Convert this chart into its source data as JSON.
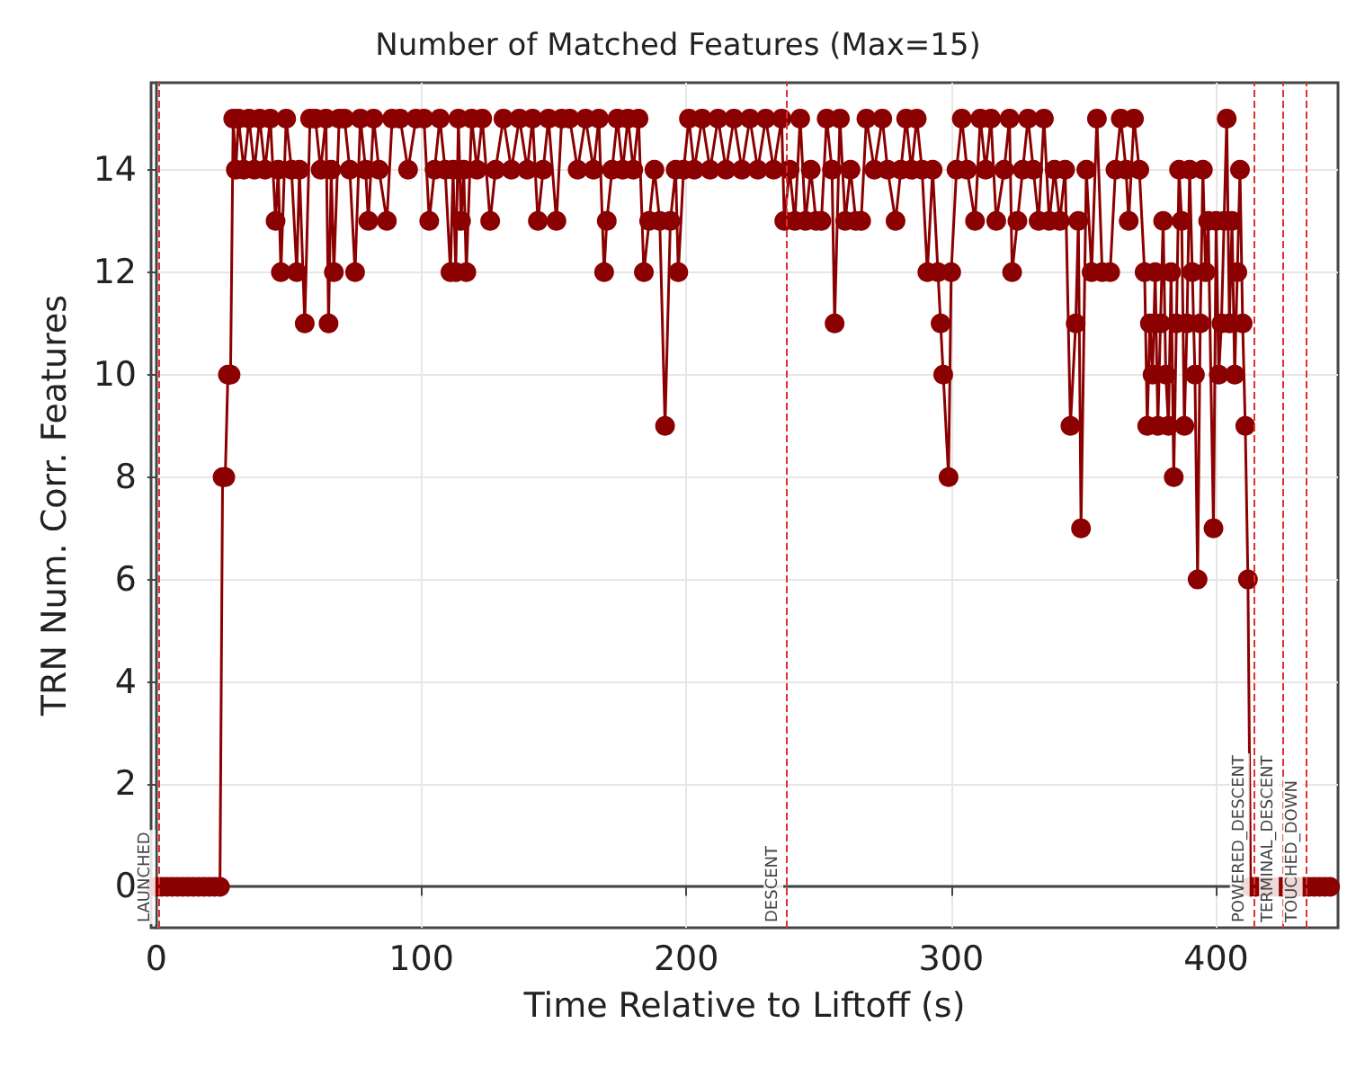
{
  "chart_data": {
    "type": "line",
    "title": "Number of Matched Features (Max=15)",
    "xlabel": "Time Relative to Liftoff (s)",
    "ylabel": "TRN Num. Corr. Features",
    "x": [
      0,
      2,
      4,
      6,
      8,
      10,
      12,
      14,
      16,
      18,
      20,
      22,
      24,
      25,
      26,
      27,
      28,
      29,
      30,
      31,
      33,
      35,
      37,
      39,
      41,
      43,
      45,
      46,
      47,
      49,
      51,
      53,
      54,
      56,
      58,
      60,
      62,
      64,
      65,
      66,
      67,
      69,
      71,
      73,
      75,
      77,
      79,
      80,
      82,
      84,
      87,
      89,
      92,
      95,
      98,
      101,
      103,
      105,
      107,
      109,
      111,
      112,
      113,
      114,
      115,
      116,
      117,
      119,
      121,
      123,
      126,
      128,
      131,
      134,
      137,
      140,
      142,
      144,
      146,
      148,
      151,
      153,
      156,
      159,
      162,
      165,
      167,
      169,
      170,
      172,
      174,
      176,
      178,
      180,
      182,
      184,
      186,
      188,
      190,
      192,
      194,
      196,
      197,
      199,
      201,
      203,
      206,
      209,
      212,
      215,
      218,
      221,
      224,
      227,
      230,
      233,
      236,
      237,
      239,
      241,
      243,
      245,
      247,
      249,
      251,
      253,
      255,
      256,
      258,
      260,
      262,
      264,
      266,
      268,
      271,
      274,
      276,
      279,
      281,
      283,
      285,
      287,
      289,
      291,
      293,
      295,
      296,
      297,
      299,
      300,
      302,
      304,
      306,
      309,
      311,
      313,
      315,
      317,
      320,
      322,
      323,
      325,
      327,
      329,
      331,
      333,
      335,
      337,
      339,
      341,
      343,
      345,
      347,
      348,
      349,
      351,
      353,
      355,
      357,
      360,
      362,
      364,
      366,
      367,
      369,
      371,
      373,
      374,
      375,
      376,
      377,
      378,
      379,
      380,
      381,
      382,
      383,
      384,
      385,
      386,
      387,
      388,
      389,
      390,
      391,
      392,
      393,
      394,
      395,
      396,
      397,
      399,
      400,
      401,
      402,
      403,
      404,
      405,
      406,
      407,
      408,
      409,
      410,
      411,
      412,
      413,
      415,
      417,
      419,
      421,
      423,
      425,
      427,
      429,
      431,
      433,
      435,
      437,
      439,
      441,
      443
    ],
    "series": [
      {
        "color": "#8b0000",
        "values": [
          0,
          0,
          0,
          0,
          0,
          0,
          0,
          0,
          0,
          0,
          0,
          0,
          0,
          8,
          8,
          10,
          10,
          15,
          14,
          15,
          14,
          15,
          14,
          15,
          14,
          15,
          13,
          14,
          12,
          15,
          14,
          12,
          14,
          11,
          15,
          15,
          14,
          15,
          11,
          14,
          12,
          15,
          15,
          14,
          12,
          15,
          14,
          13,
          15,
          14,
          13,
          15,
          15,
          14,
          15,
          15,
          13,
          14,
          15,
          14,
          12,
          14,
          12,
          15,
          13,
          14,
          12,
          15,
          14,
          15,
          13,
          14,
          15,
          14,
          15,
          14,
          15,
          13,
          14,
          15,
          13,
          15,
          15,
          14,
          15,
          14,
          15,
          12,
          13,
          14,
          15,
          14,
          15,
          14,
          15,
          12,
          13,
          14,
          13,
          9,
          13,
          14,
          12,
          14,
          15,
          14,
          15,
          14,
          15,
          14,
          15,
          14,
          15,
          14,
          15,
          14,
          15,
          13,
          14,
          13,
          15,
          13,
          14,
          13,
          13,
          15,
          14,
          11,
          15,
          13,
          14,
          13,
          13,
          15,
          14,
          15,
          14,
          13,
          14,
          15,
          14,
          15,
          14,
          12,
          14,
          12,
          11,
          10,
          8,
          12,
          14,
          15,
          14,
          13,
          15,
          14,
          15,
          13,
          14,
          15,
          12,
          13,
          14,
          15,
          14,
          13,
          15,
          13,
          14,
          13,
          14,
          9,
          11,
          13,
          7,
          14,
          12,
          15,
          12,
          12,
          14,
          15,
          14,
          13,
          15,
          14,
          12,
          9,
          11,
          10,
          12,
          9,
          11,
          13,
          10,
          9,
          12,
          8,
          11,
          14,
          13,
          9,
          11,
          14,
          12,
          10,
          6,
          11,
          14,
          12,
          13,
          7,
          13,
          10,
          11,
          13,
          15,
          11,
          13,
          10,
          12,
          14,
          11,
          9,
          6,
          0,
          0,
          0,
          0,
          0,
          0,
          0,
          0,
          0,
          0,
          0,
          0,
          0,
          0,
          0,
          0
        ]
      }
    ],
    "xlim": [
      -2,
      446
    ],
    "xticks": [
      0,
      100,
      200,
      300,
      400
    ],
    "ylim": [
      -0.8,
      15.7
    ],
    "yticks": [
      0,
      2,
      4,
      6,
      8,
      10,
      12,
      14
    ],
    "grid": true,
    "marker": "circle",
    "line_style": "solid",
    "ref_lines": [
      {
        "axis": "x",
        "value": 1,
        "label": "LAUNCHED",
        "color": "#e03030",
        "line_style": "dashed"
      },
      {
        "axis": "x",
        "value": 238,
        "label": "DESCENT",
        "color": "#e03030",
        "line_style": "dashed"
      },
      {
        "axis": "x",
        "value": 414,
        "label": "POWERED_DESCENT",
        "color": "#e03030",
        "line_style": "dashed"
      },
      {
        "axis": "x",
        "value": 425,
        "label": "TERMINAL_DESCENT",
        "color": "#e03030",
        "line_style": "dashed"
      },
      {
        "axis": "x",
        "value": 434,
        "label": "TOUCHED_DOWN",
        "color": "#e03030",
        "line_style": "dashed"
      }
    ]
  }
}
